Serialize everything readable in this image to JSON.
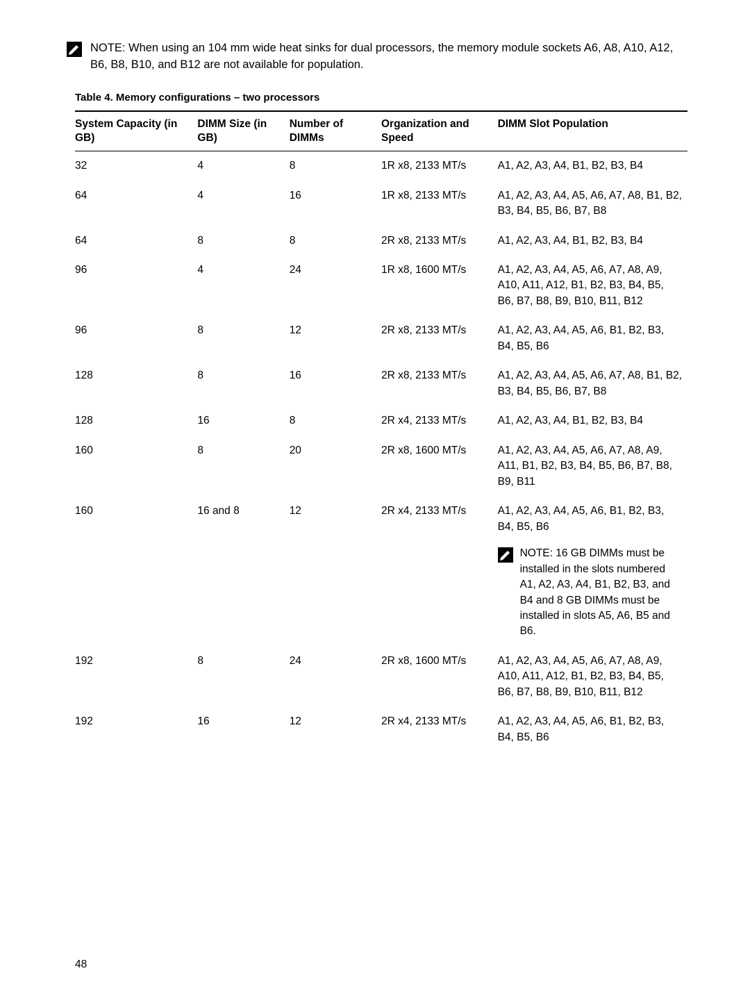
{
  "note": {
    "label": "NOTE:",
    "text": " When using an 104 mm wide heat sinks for dual processors, the memory module sockets A6, A8, A10, A12, B6, B8, B10, and B12 are not available for population."
  },
  "table": {
    "caption": "Table 4. Memory configurations – two processors",
    "headers": {
      "syscap": "System Capacity (in GB)",
      "dimmsize": "DIMM Size (in GB)",
      "numdimm": "Number of DIMMs",
      "org": "Organization and Speed",
      "pop": "DIMM Slot Population"
    },
    "rows": [
      {
        "syscap": "32",
        "dimmsize": "4",
        "numdimm": "8",
        "org": "1R x8, 2133 MT/s",
        "pop": "A1, A2, A3, A4, B1, B2, B3, B4"
      },
      {
        "syscap": "64",
        "dimmsize": "4",
        "numdimm": "16",
        "org": "1R x8, 2133 MT/s",
        "pop": "A1, A2, A3, A4, A5, A6, A7, A8, B1, B2, B3, B4, B5, B6, B7, B8"
      },
      {
        "syscap": "64",
        "dimmsize": "8",
        "numdimm": "8",
        "org": "2R x8, 2133 MT/s",
        "pop": "A1, A2, A3, A4, B1, B2, B3, B4"
      },
      {
        "syscap": "96",
        "dimmsize": "4",
        "numdimm": "24",
        "org": "1R x8, 1600 MT/s",
        "pop": "A1, A2, A3, A4, A5, A6, A7, A8, A9, A10, A11, A12, B1, B2, B3, B4, B5, B6, B7, B8, B9, B10, B11, B12"
      },
      {
        "syscap": "96",
        "dimmsize": "8",
        "numdimm": "12",
        "org": "2R x8, 2133 MT/s",
        "pop": "A1, A2, A3, A4, A5, A6, B1, B2, B3, B4, B5, B6"
      },
      {
        "syscap": "128",
        "dimmsize": "8",
        "numdimm": "16",
        "org": "2R x8, 2133 MT/s",
        "pop": "A1, A2, A3, A4, A5, A6, A7, A8, B1, B2, B3, B4, B5, B6, B7, B8"
      },
      {
        "syscap": "128",
        "dimmsize": "16",
        "numdimm": "8",
        "org": "2R x4, 2133 MT/s",
        "pop": "A1, A2, A3, A4, B1, B2, B3, B4"
      },
      {
        "syscap": "160",
        "dimmsize": "8",
        "numdimm": "20",
        "org": "2R x8, 1600 MT/s",
        "pop": "A1, A2, A3, A4, A5, A6, A7, A8, A9, A11, B1, B2, B3, B4, B5, B6, B7, B8, B9, B11"
      },
      {
        "syscap": "160",
        "dimmsize": "16 and 8",
        "numdimm": "12",
        "org": "2R x4, 2133 MT/s",
        "pop": "A1, A2, A3, A4, A5, A6, B1, B2, B3, B4, B5, B6",
        "note": {
          "label": "NOTE:",
          "text": " 16 GB DIMMs must be installed in the slots numbered A1, A2, A3, A4, B1, B2, B3, and B4 and 8 GB DIMMs must be installed in slots A5, A6, B5 and B6."
        }
      },
      {
        "syscap": "192",
        "dimmsize": "8",
        "numdimm": "24",
        "org": "2R x8, 1600 MT/s",
        "pop": "A1, A2, A3, A4, A5, A6, A7, A8, A9, A10, A11, A12, B1, B2, B3, B4, B5, B6, B7, B8, B9, B10, B11, B12"
      },
      {
        "syscap": "192",
        "dimmsize": "16",
        "numdimm": "12",
        "org": "2R x4, 2133 MT/s",
        "pop": "A1, A2, A3, A4, A5, A6, B1, B2, B3, B4, B5, B6"
      }
    ]
  },
  "page_number": "48",
  "colors": {
    "text": "#000000",
    "bg": "#ffffff",
    "border": "#000000",
    "icon_bg": "#000000",
    "icon_fg": "#ffffff"
  }
}
